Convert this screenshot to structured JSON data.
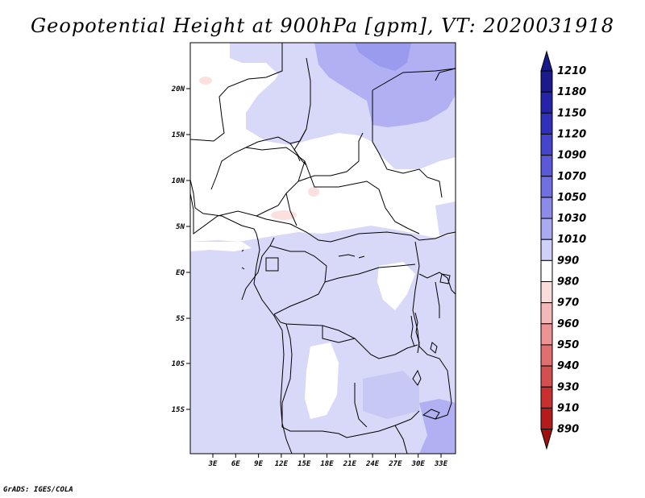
{
  "title": "Geopotential Height at 900hPa [gpm], VT: 2020031918",
  "credit": "GrADS: IGES/COLA",
  "map": {
    "region": "Central Africa",
    "lon_labels": [
      "3E",
      "6E",
      "9E",
      "12E",
      "15E",
      "18E",
      "21E",
      "24E",
      "27E",
      "30E",
      "33E"
    ],
    "lat_labels": [
      "20N",
      "15N",
      "10N",
      "5N",
      "EQ",
      "5S",
      "10S",
      "15S"
    ],
    "base_fill": "#d8d8f8"
  },
  "colorbar": {
    "levels": [
      "1210",
      "1180",
      "1150",
      "1120",
      "1090",
      "1070",
      "1050",
      "1030",
      "1010",
      "990",
      "980",
      "970",
      "960",
      "950",
      "940",
      "930",
      "910",
      "890"
    ],
    "colors": [
      "#1a1a8c",
      "#2424a8",
      "#3030bc",
      "#4444cc",
      "#5a5ad8",
      "#7070e0",
      "#8c8ce8",
      "#aaaaf0",
      "#d0d0f8",
      "#ffffff",
      "#fadcdc",
      "#f4b8b8",
      "#ec9494",
      "#e07070",
      "#d45050",
      "#c83030",
      "#b41c1c",
      "#a01010"
    ],
    "top_color": "#1a1a8c",
    "bottom_color": "#a01010"
  }
}
